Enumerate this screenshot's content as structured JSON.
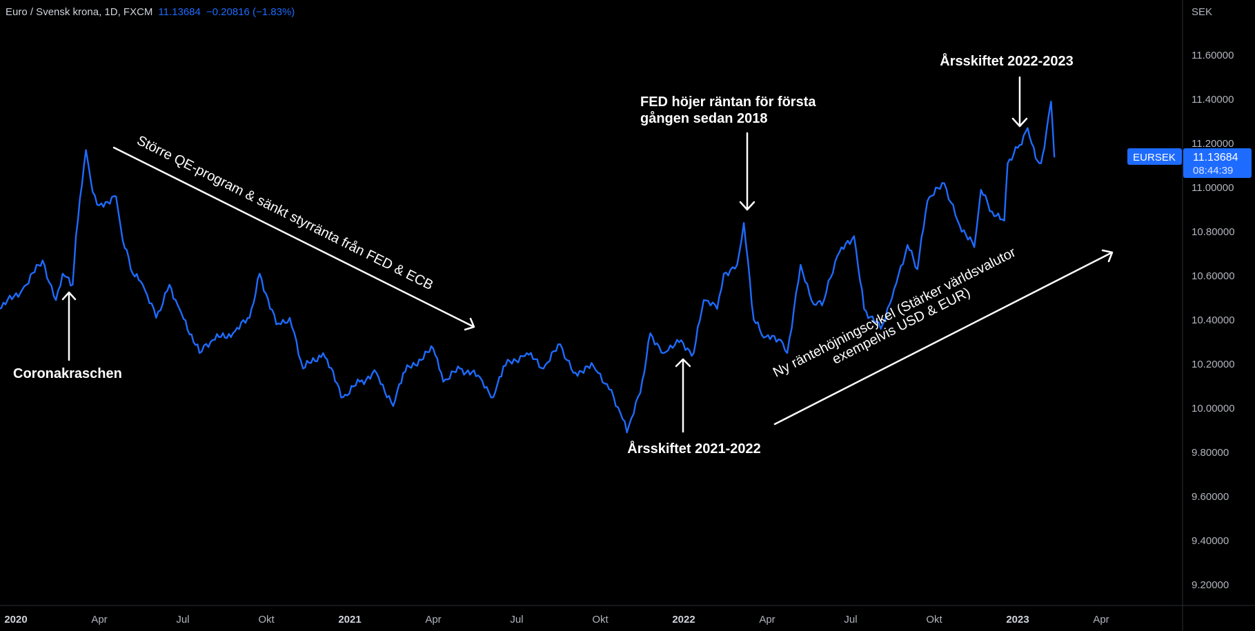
{
  "header": {
    "symbol_title": "Euro / Svensk krona, 1D, FXCM",
    "last_price": "11.13684",
    "change": "−0.20816 (−1.83%)"
  },
  "price_axis": {
    "currency": "SEK",
    "labels": [
      "11.60000",
      "11.40000",
      "11.20000",
      "11.00000",
      "10.80000",
      "10.60000",
      "10.40000",
      "10.20000",
      "10.00000",
      "9.80000",
      "9.60000",
      "9.40000",
      "9.20000"
    ],
    "last_tag_symbol": "EURSEK",
    "last_tag_price": "11.13684",
    "last_tag_countdown": "08:44:39"
  },
  "time_axis": {
    "labels": [
      {
        "text": "2020",
        "t": 2020.0,
        "year": true
      },
      {
        "text": "Apr",
        "t": 2020.25,
        "year": false
      },
      {
        "text": "Jul",
        "t": 2020.5,
        "year": false
      },
      {
        "text": "Okt",
        "t": 2020.75,
        "year": false
      },
      {
        "text": "2021",
        "t": 2021.0,
        "year": true
      },
      {
        "text": "Apr",
        "t": 2021.25,
        "year": false
      },
      {
        "text": "Jul",
        "t": 2021.5,
        "year": false
      },
      {
        "text": "Okt",
        "t": 2021.75,
        "year": false
      },
      {
        "text": "2022",
        "t": 2022.0,
        "year": true
      },
      {
        "text": "Apr",
        "t": 2022.25,
        "year": false
      },
      {
        "text": "Jul",
        "t": 2022.5,
        "year": false
      },
      {
        "text": "Okt",
        "t": 2022.75,
        "year": false
      },
      {
        "text": "2023",
        "t": 2023.0,
        "year": true
      },
      {
        "text": "Apr",
        "t": 2023.25,
        "year": false
      }
    ]
  },
  "annotations": {
    "corona": "Coronakraschen",
    "qe": "Större QE-program & sänkt styrränta från FED & ECB",
    "fed_line1": "FED höjer räntan för första",
    "fed_line2": "gången sedan 2018",
    "year_2122": "Årsskiftet 2021-2022",
    "year_2223": "Årsskiftet 2022-2023",
    "cycle_line1": "Ny räntehöjningscykel (Stärker världsvalutor",
    "cycle_line2": "exempelvis USD & EUR)"
  },
  "colors": {
    "line": "#1e6bff",
    "tag": "#1e6bff",
    "text": "#ffffff",
    "axis": "#b2b5be"
  },
  "chart_data": {
    "type": "line",
    "title": "Euro / Svensk krona, 1D, FXCM",
    "ylabel": "SEK",
    "ylim": [
      9.1,
      11.75
    ],
    "xlim": [
      2019.95,
      2023.4
    ],
    "series": [
      {
        "name": "EURSEK",
        "t": [
          2019.95,
          2020.02,
          2020.08,
          2020.12,
          2020.14,
          2020.17,
          2020.18,
          2020.21,
          2020.23,
          2020.25,
          2020.3,
          2020.32,
          2020.35,
          2020.38,
          2020.42,
          2020.46,
          2020.49,
          2020.55,
          2020.59,
          2020.65,
          2020.7,
          2020.73,
          2020.78,
          2020.82,
          2020.86,
          2020.92,
          2020.98,
          2021.03,
          2021.08,
          2021.13,
          2021.16,
          2021.25,
          2021.28,
          2021.33,
          2021.39,
          2021.43,
          2021.46,
          2021.53,
          2021.58,
          2021.63,
          2021.67,
          2021.73,
          2021.77,
          2021.81,
          2021.83,
          2021.87,
          2021.9,
          2021.94,
          2021.98,
          2022.03,
          2022.06,
          2022.1,
          2022.12,
          2022.16,
          2022.18,
          2022.21,
          2022.24,
          2022.29,
          2022.31,
          2022.35,
          2022.39,
          2022.42,
          2022.46,
          2022.51,
          2022.54,
          2022.59,
          2022.63,
          2022.67,
          2022.7,
          2022.73,
          2022.78,
          2022.82,
          2022.87,
          2022.89,
          2022.93,
          2022.96,
          2022.97,
          2023.0,
          2023.03,
          2023.06,
          2023.07,
          2023.08,
          2023.1,
          2023.11
        ],
        "values": [
          10.45,
          10.54,
          10.67,
          10.49,
          10.61,
          10.56,
          10.78,
          11.17,
          10.98,
          10.92,
          10.96,
          10.76,
          10.61,
          10.56,
          10.41,
          10.56,
          10.45,
          10.25,
          10.31,
          10.34,
          10.41,
          10.61,
          10.38,
          10.41,
          10.18,
          10.25,
          10.05,
          10.12,
          10.16,
          10.01,
          10.16,
          10.27,
          10.12,
          10.18,
          10.14,
          10.05,
          10.19,
          10.25,
          10.18,
          10.29,
          10.16,
          10.19,
          10.11,
          9.98,
          9.89,
          10.07,
          10.34,
          10.25,
          10.31,
          10.25,
          10.49,
          10.45,
          10.61,
          10.65,
          10.84,
          10.4,
          10.32,
          10.31,
          10.25,
          10.65,
          10.47,
          10.49,
          10.69,
          10.78,
          10.45,
          10.36,
          10.54,
          10.74,
          10.63,
          10.94,
          11.02,
          10.85,
          10.73,
          10.99,
          10.87,
          10.85,
          11.11,
          11.18,
          11.27,
          11.12,
          11.11,
          11.18,
          11.39,
          11.13684
        ]
      }
    ]
  }
}
